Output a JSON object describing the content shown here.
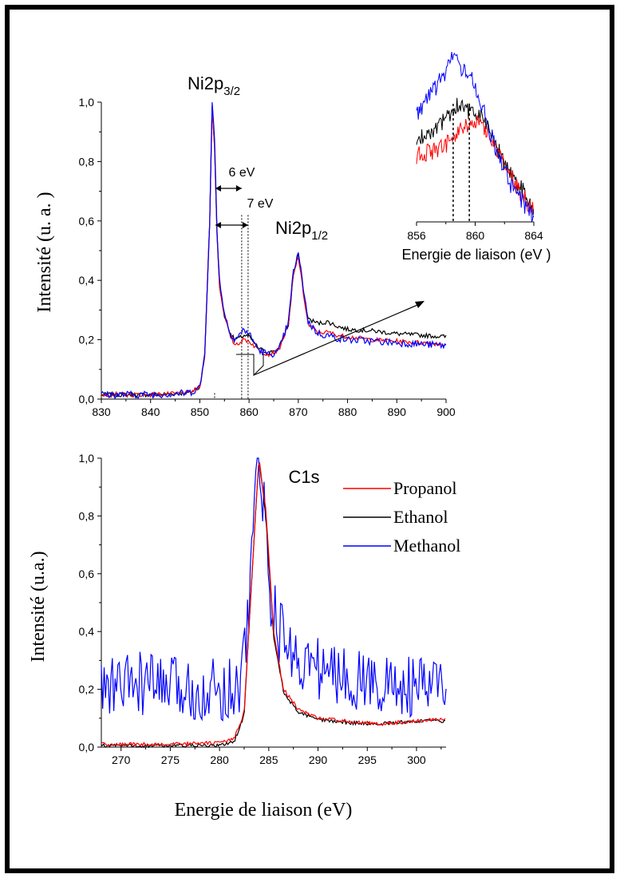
{
  "chart_data": [
    {
      "type": "line",
      "title": "",
      "xlabel": "",
      "ylabel": "Intensité (u. a. )",
      "xlim": [
        830,
        900
      ],
      "ylim": [
        0,
        1.0
      ],
      "x_ticks": [
        "830",
        "840",
        "850",
        "860",
        "870",
        "880",
        "890",
        "900"
      ],
      "y_ticks": [
        "0,0",
        "0,2",
        "0,4",
        "0,6",
        "0,8",
        "1,0"
      ],
      "grid": false,
      "series": [
        {
          "color": "#000000",
          "x": [
            830,
            840,
            845,
            848,
            850,
            851,
            852,
            852.5,
            853,
            853.5,
            854,
            855,
            856,
            857,
            858,
            859,
            860,
            861,
            862,
            864,
            866,
            868,
            869,
            870,
            871,
            872,
            874,
            876,
            878,
            880,
            885,
            890,
            895,
            900
          ],
          "y": [
            0.015,
            0.015,
            0.018,
            0.022,
            0.04,
            0.15,
            0.6,
            0.98,
            0.85,
            0.55,
            0.38,
            0.28,
            0.23,
            0.2,
            0.205,
            0.215,
            0.21,
            0.19,
            0.17,
            0.155,
            0.17,
            0.25,
            0.42,
            0.49,
            0.37,
            0.27,
            0.255,
            0.26,
            0.245,
            0.235,
            0.23,
            0.22,
            0.215,
            0.21
          ]
        },
        {
          "color": "#ff0000",
          "x": [
            830,
            840,
            845,
            848,
            850,
            851,
            852,
            852.5,
            853,
            853.5,
            854,
            855,
            856,
            857,
            858,
            859,
            860,
            861,
            862,
            864,
            866,
            868,
            869,
            870,
            871,
            872,
            874,
            876,
            878,
            880,
            885,
            890,
            895,
            900
          ],
          "y": [
            0.015,
            0.015,
            0.018,
            0.022,
            0.04,
            0.15,
            0.6,
            0.98,
            0.85,
            0.55,
            0.38,
            0.28,
            0.22,
            0.185,
            0.19,
            0.2,
            0.195,
            0.18,
            0.165,
            0.15,
            0.165,
            0.25,
            0.42,
            0.48,
            0.36,
            0.25,
            0.225,
            0.225,
            0.215,
            0.21,
            0.2,
            0.195,
            0.19,
            0.185
          ]
        },
        {
          "color": "#0000ff",
          "x": [
            830,
            840,
            845,
            848,
            850,
            851,
            852,
            852.5,
            853,
            853.5,
            854,
            855,
            856,
            857,
            858,
            859,
            860,
            861,
            862,
            864,
            866,
            868,
            869,
            870,
            871,
            872,
            874,
            876,
            878,
            880,
            885,
            890,
            895,
            900
          ],
          "y": [
            0.015,
            0.015,
            0.018,
            0.022,
            0.04,
            0.15,
            0.6,
            1.0,
            0.87,
            0.57,
            0.4,
            0.29,
            0.23,
            0.2,
            0.215,
            0.235,
            0.22,
            0.19,
            0.165,
            0.15,
            0.16,
            0.26,
            0.43,
            0.49,
            0.38,
            0.26,
            0.22,
            0.215,
            0.205,
            0.2,
            0.195,
            0.19,
            0.185,
            0.18
          ]
        }
      ],
      "annotations": {
        "peak1": "Ni2p",
        "peak1_sub": "3/2",
        "peak2": "Ni2p",
        "peak2_sub": "1/2",
        "gap1": "6 eV",
        "gap2": "7 eV"
      },
      "inset": {
        "xlabel": "Energie de liaison (eV )",
        "xlim": [
          856,
          864
        ],
        "x_ticks": [
          "856",
          "860",
          "864"
        ]
      }
    },
    {
      "type": "line",
      "title": "",
      "xlabel": "Energie de liaison (eV)",
      "ylabel": "Intensité (u.a.)",
      "xlim": [
        268,
        303
      ],
      "ylim": [
        0,
        1.0
      ],
      "x_ticks": [
        "270",
        "275",
        "280",
        "285",
        "290",
        "295",
        "300"
      ],
      "y_ticks": [
        "0,0",
        "0,2",
        "0,4",
        "0,6",
        "0,8",
        "1,0"
      ],
      "grid": false,
      "legend": {
        "position": "top-right",
        "labels": [
          "Propanol",
          "Ethanol",
          "Methanol"
        ],
        "colors": [
          "#ff0000",
          "#000000",
          "#0000ff"
        ]
      },
      "series": [
        {
          "name": "Propanol",
          "color": "#ff0000",
          "x": [
            268,
            275,
            280,
            281.5,
            282.5,
            283.3,
            284,
            284.7,
            285.5,
            286.5,
            288,
            290,
            293,
            296,
            300,
            303
          ],
          "y": [
            0.01,
            0.01,
            0.015,
            0.03,
            0.12,
            0.6,
            1.0,
            0.82,
            0.4,
            0.2,
            0.13,
            0.1,
            0.09,
            0.08,
            0.09,
            0.1
          ]
        },
        {
          "name": "Ethanol",
          "color": "#000000",
          "x": [
            268,
            275,
            280,
            281.5,
            282.5,
            283.3,
            284,
            284.7,
            285.5,
            286.5,
            288,
            290,
            293,
            296,
            300,
            303
          ],
          "y": [
            0.005,
            0.005,
            0.005,
            0.02,
            0.11,
            0.6,
            1.0,
            0.8,
            0.38,
            0.19,
            0.12,
            0.095,
            0.085,
            0.08,
            0.09,
            0.09
          ]
        },
        {
          "name": "Methanol",
          "color": "#0000ff",
          "x": [
            268,
            272,
            276,
            280,
            282,
            283,
            283.5,
            284,
            284.5,
            285,
            286,
            288,
            292,
            296,
            300,
            303
          ],
          "y": [
            0.2,
            0.22,
            0.2,
            0.2,
            0.21,
            0.45,
            0.9,
            1.0,
            0.85,
            0.55,
            0.4,
            0.3,
            0.25,
            0.22,
            0.2,
            0.22
          ]
        }
      ],
      "annotations": {
        "peak": "C1s"
      }
    }
  ]
}
